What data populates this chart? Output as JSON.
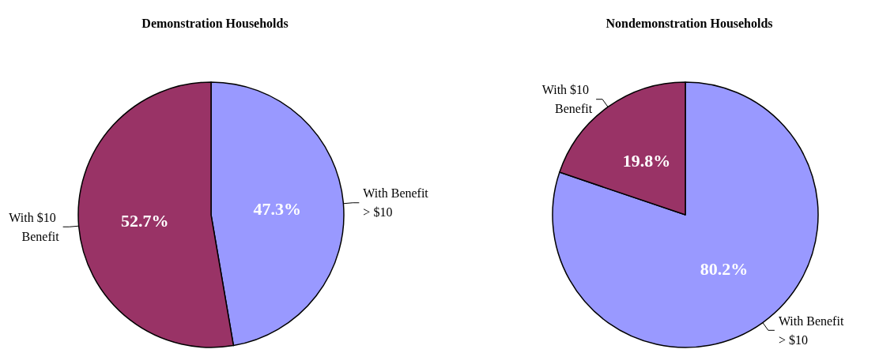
{
  "chart_data": [
    {
      "type": "pie",
      "title": "Demonstration Households",
      "categories": [
        "With Benefit > $10",
        "With $10 Benefit"
      ],
      "values": [
        47.3,
        52.7
      ],
      "colors": [
        "#9999ff",
        "#993366"
      ],
      "value_labels": [
        "47.3%",
        "52.7%"
      ]
    },
    {
      "type": "pie",
      "title": "Nondemonstration Households",
      "categories": [
        "With Benefit > $10",
        "With $10 Benefit"
      ],
      "values": [
        80.2,
        19.8
      ],
      "colors": [
        "#9999ff",
        "#993366"
      ],
      "value_labels": [
        "80.2%",
        "19.8%"
      ]
    }
  ]
}
